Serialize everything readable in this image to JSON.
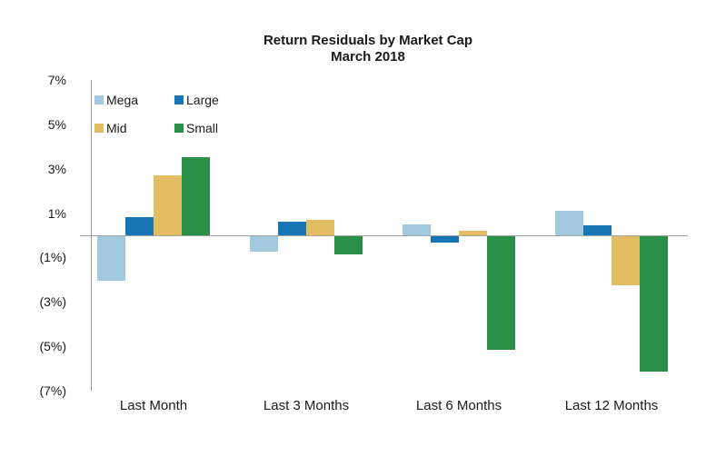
{
  "chart_data": {
    "type": "bar",
    "title": "Return Residuals by Market Cap",
    "subtitle": "March 2018",
    "categories": [
      "Last Month",
      "Last 3 Months",
      "Last 6 Months",
      "Last 12 Months"
    ],
    "series": [
      {
        "name": "Mega",
        "color": "#a3c9e1",
        "values": [
          -2.0,
          -0.7,
          0.5,
          1.1
        ]
      },
      {
        "name": "Large",
        "color": "#1776b6",
        "values": [
          0.8,
          0.6,
          -0.3,
          0.45
        ]
      },
      {
        "name": "Mid",
        "color": "#e2bd62",
        "values": [
          2.7,
          0.7,
          0.2,
          -2.2
        ]
      },
      {
        "name": "Small",
        "color": "#2b8e46",
        "values": [
          3.5,
          -0.8,
          -5.1,
          -6.1
        ]
      }
    ],
    "y_axis": {
      "unit": "%",
      "min": -7,
      "max": 7,
      "tick_labels": [
        "7%",
        "5%",
        "3%",
        "1%",
        "(1%)",
        "(3%)",
        "(5%)",
        "(7%)"
      ],
      "tick_values": [
        7,
        5,
        3,
        1,
        -1,
        -3,
        -5,
        -7
      ]
    },
    "legend_position": "top-left",
    "grid": false
  }
}
